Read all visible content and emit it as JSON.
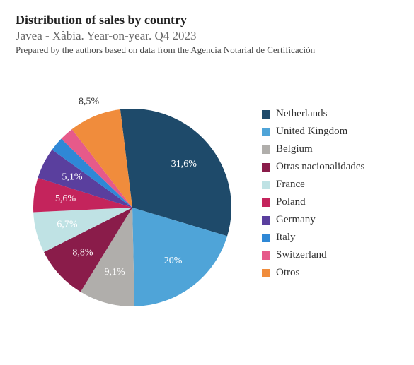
{
  "header": {
    "title": "Distribution of sales by country",
    "subtitle": "Javea - Xàbia. Year-on-year. Q4 2023",
    "note": "Prepared by the authors based on data from the Agencia Notarial de Certificación"
  },
  "chart": {
    "type": "pie",
    "background_color": "#ffffff",
    "start_angle_deg": -7,
    "radius": 140,
    "label_fontsize": 14,
    "legend_fontsize": 15,
    "title_fontsize": 18,
    "subtitle_fontsize": 17,
    "note_fontsize": 13,
    "slices": [
      {
        "name": "Netherlands",
        "value": 31.6,
        "label": "31,6%",
        "color": "#1e4a6a",
        "show_label": true,
        "label_outside": false
      },
      {
        "name": "United Kingdom",
        "value": 20.0,
        "label": "20%",
        "color": "#4fa4d8",
        "show_label": true,
        "label_outside": false
      },
      {
        "name": "Belgium",
        "value": 9.1,
        "label": "9,1%",
        "color": "#b0aeab",
        "show_label": true,
        "label_outside": false
      },
      {
        "name": "Otras nacionalidades",
        "value": 8.8,
        "label": "8,8%",
        "color": "#8a1c4a",
        "show_label": true,
        "label_outside": false
      },
      {
        "name": "France",
        "value": 6.7,
        "label": "6,7%",
        "color": "#bfe2e4",
        "show_label": true,
        "label_outside": false
      },
      {
        "name": "Poland",
        "value": 5.6,
        "label": "5,6%",
        "color": "#c4245c",
        "show_label": true,
        "label_outside": false
      },
      {
        "name": "Germany",
        "value": 5.1,
        "label": "5,1%",
        "color": "#5a3f9e",
        "show_label": true,
        "label_outside": false
      },
      {
        "name": "Italy",
        "value": 2.3,
        "label": "",
        "color": "#2f88d6",
        "show_label": false,
        "label_outside": false
      },
      {
        "name": "Switzerland",
        "value": 2.3,
        "label": "",
        "color": "#e65a8a",
        "show_label": false,
        "label_outside": false
      },
      {
        "name": "Otros",
        "value": 8.5,
        "label": "8,5%",
        "color": "#f08c3c",
        "show_label": true,
        "label_outside": true
      }
    ]
  }
}
